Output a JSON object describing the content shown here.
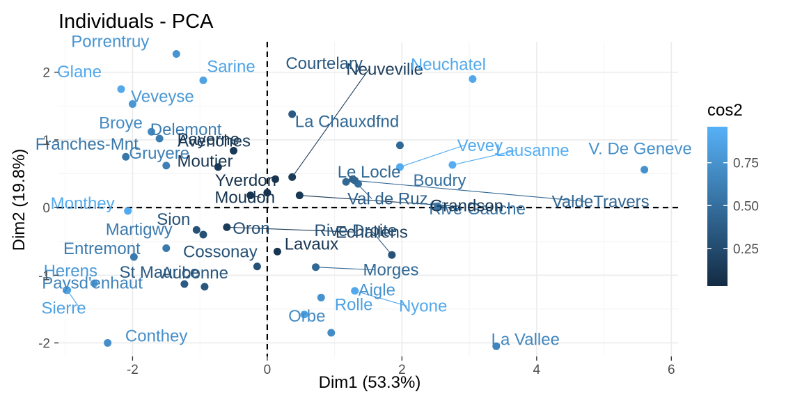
{
  "chart_data": {
    "type": "scatter",
    "title": "Individuals - PCA",
    "xlabel": "Dim1 (53.3%)",
    "ylabel": "Dim2 (19.8%)",
    "xlim": [
      -3.1,
      6.1
    ],
    "ylim": [
      -2.2,
      2.45
    ],
    "x_ticks": [
      -2,
      0,
      2,
      4,
      6
    ],
    "y_ticks": [
      -2,
      -1,
      0,
      1,
      2
    ],
    "x_tick_labels": [
      "-2",
      "0",
      "2",
      "4",
      "6"
    ],
    "y_tick_labels": [
      "-2",
      "-1",
      "0",
      "1",
      "2"
    ],
    "grid": true,
    "reference_lines": {
      "x": 0,
      "y": 0,
      "style": "dashed"
    },
    "color_legend": {
      "title": "cos2",
      "labels": [
        "0.25",
        "0.50",
        "0.75"
      ],
      "values": [
        0.25,
        0.5,
        0.75
      ],
      "range": [
        0.03,
        0.96
      ],
      "low_color": "#132B43",
      "high_color": "#56B1F7",
      "placement": "right"
    },
    "points": [
      {
        "name": "Porrentruy",
        "x": -1.35,
        "y": 2.27,
        "cos2": 0.76
      },
      {
        "name": "Sarine",
        "x": -0.95,
        "y": 1.88,
        "cos2": 0.86
      },
      {
        "name": "Glane",
        "x": -2.17,
        "y": 1.75,
        "cos2": 0.9
      },
      {
        "name": "Veveyse",
        "x": -2.0,
        "y": 1.53,
        "cos2": 0.78
      },
      {
        "name": "Broye",
        "x": -1.72,
        "y": 1.12,
        "cos2": 0.68
      },
      {
        "name": "Delemont",
        "x": -1.6,
        "y": 1.02,
        "cos2": 0.6
      },
      {
        "name": "Franches-Mnt",
        "x": -2.1,
        "y": 0.75,
        "cos2": 0.55
      },
      {
        "name": "Gruyere",
        "x": -1.5,
        "y": 0.62,
        "cos2": 0.62
      },
      {
        "name": "Monthey",
        "x": -2.07,
        "y": -0.05,
        "cos2": 0.92
      },
      {
        "name": "Entremont",
        "x": -1.98,
        "y": -0.73,
        "cos2": 0.58
      },
      {
        "name": "Martigwy",
        "x": -1.5,
        "y": -0.6,
        "cos2": 0.57
      },
      {
        "name": "Herens",
        "x": -2.57,
        "y": -1.12,
        "cos2": 0.8
      },
      {
        "name": "St Maurice",
        "x": -1.23,
        "y": -1.13,
        "cos2": 0.35
      },
      {
        "name": "Aubonne",
        "x": -0.93,
        "y": -1.17,
        "cos2": 0.33
      },
      {
        "name": "Paysd'enhaut",
        "x": -2.98,
        "y": -1.22,
        "cos2": 0.65
      },
      {
        "name": "Sierre",
        "x": -2.97,
        "y": -1.22,
        "cos2": 0.85
      },
      {
        "name": "Conthey",
        "x": -2.37,
        "y": -2.0,
        "cos2": 0.72
      },
      {
        "name": "Payerne",
        "x": -0.73,
        "y": 0.6,
        "cos2": 0.12
      },
      {
        "name": "Avenches",
        "x": -0.5,
        "y": 0.84,
        "cos2": 0.13
      },
      {
        "name": "Moutier",
        "x": 0.12,
        "y": 0.42,
        "cos2": 0.1
      },
      {
        "name": "Yverdon",
        "x": 0.0,
        "y": 0.22,
        "cos2": 0.08
      },
      {
        "name": "Sion",
        "x": -1.05,
        "y": -0.33,
        "cos2": 0.3
      },
      {
        "name": "Oron",
        "x": -0.95,
        "y": -0.4,
        "cos2": 0.28
      },
      {
        "name": "Lavaux",
        "x": 0.15,
        "y": -0.65,
        "cos2": 0.1
      },
      {
        "name": "Cossonay",
        "x": -0.15,
        "y": -0.87,
        "cos2": 0.3
      },
      {
        "name": "Neuveville",
        "x": 0.37,
        "y": 0.45,
        "cos2": 0.15
      },
      {
        "name": "Courtelary",
        "x": 0.37,
        "y": 1.38,
        "cos2": 0.35
      },
      {
        "name": "La Chauxdfnd",
        "x": 1.97,
        "y": 0.92,
        "cos2": 0.45
      },
      {
        "name": "Le Locle",
        "x": 1.17,
        "y": 0.38,
        "cos2": 0.45
      },
      {
        "name": "Boudry",
        "x": 1.35,
        "y": 0.35,
        "cos2": 0.5
      },
      {
        "name": "Val de Ruz",
        "x": 1.27,
        "y": 0.42,
        "cos2": 0.4
      },
      {
        "name": "Vevey",
        "x": 1.97,
        "y": 0.6,
        "cos2": 0.92
      },
      {
        "name": "Lausanne",
        "x": 2.75,
        "y": 0.63,
        "cos2": 0.94
      },
      {
        "name": "Neuchatel",
        "x": 3.05,
        "y": 1.9,
        "cos2": 0.9
      },
      {
        "name": "V. De Geneve",
        "x": 5.6,
        "y": 0.56,
        "cos2": 0.74
      },
      {
        "name": "Rive Gauche",
        "x": 2.53,
        "y": 0.02,
        "cos2": 0.53
      },
      {
        "name": "ValdeTravers",
        "x": 1.3,
        "y": 0.4,
        "cos2": 0.44
      },
      {
        "name": "Moudon",
        "x": -0.25,
        "y": 0.18,
        "cos2": 0.09
      },
      {
        "name": "Echallens",
        "x": -0.6,
        "y": -0.29,
        "cos2": 0.15
      },
      {
        "name": "Grandson",
        "x": 0.48,
        "y": 0.18,
        "cos2": 0.12
      },
      {
        "name": "Rive Droite",
        "x": 1.85,
        "y": -0.7,
        "cos2": 0.3
      },
      {
        "name": "Morges",
        "x": 0.72,
        "y": -0.88,
        "cos2": 0.45
      },
      {
        "name": "Nyone",
        "x": 1.3,
        "y": -1.23,
        "cos2": 0.9
      },
      {
        "name": "Aigle",
        "x": 0.8,
        "y": -1.33,
        "cos2": 0.75
      },
      {
        "name": "Rolle",
        "x": 0.55,
        "y": -1.58,
        "cos2": 0.85
      },
      {
        "name": "Orbe",
        "x": 0.95,
        "y": -1.85,
        "cos2": 0.7
      },
      {
        "name": "La Vallee",
        "x": 3.4,
        "y": -2.05,
        "cos2": 0.66
      }
    ]
  }
}
